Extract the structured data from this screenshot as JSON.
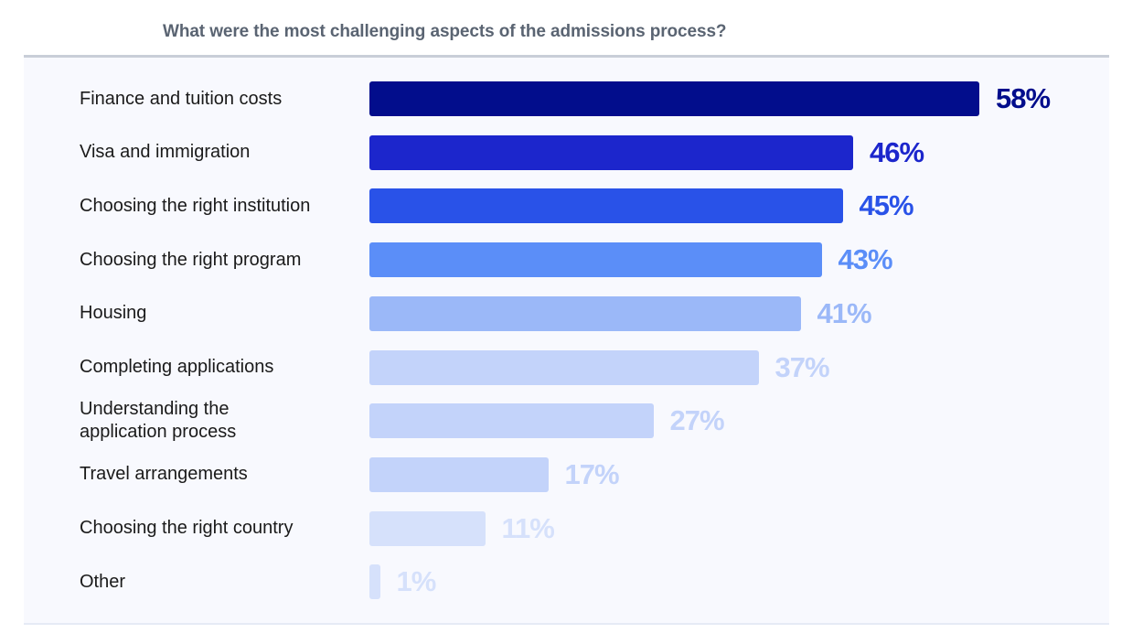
{
  "chart_data": {
    "type": "bar",
    "orientation": "horizontal",
    "title": "What were the most challenging aspects of the admissions process?",
    "xlabel": "",
    "ylabel": "",
    "xlim": [
      0,
      100
    ],
    "grid": false,
    "categories": [
      "Finance and tuition costs",
      "Visa and immigration",
      "Choosing the right institution",
      "Choosing the right program",
      "Housing",
      "Completing applications",
      "Understanding the\napplication process",
      "Travel arrangements",
      "Choosing the right country",
      "Other"
    ],
    "values": [
      58,
      46,
      45,
      43,
      41,
      37,
      27,
      17,
      11,
      1
    ],
    "labels": [
      "58%",
      "46%",
      "45%",
      "43%",
      "41%",
      "37%",
      "27%",
      "17%",
      "11%",
      "1%"
    ],
    "colors": [
      "#020d8c",
      "#1c26cc",
      "#2952e8",
      "#5b8ef8",
      "#9bb8f8",
      "#c3d3fa",
      "#c3d3fa",
      "#c3d3fa",
      "#d6e1fb",
      "#d6e1fb"
    ]
  }
}
